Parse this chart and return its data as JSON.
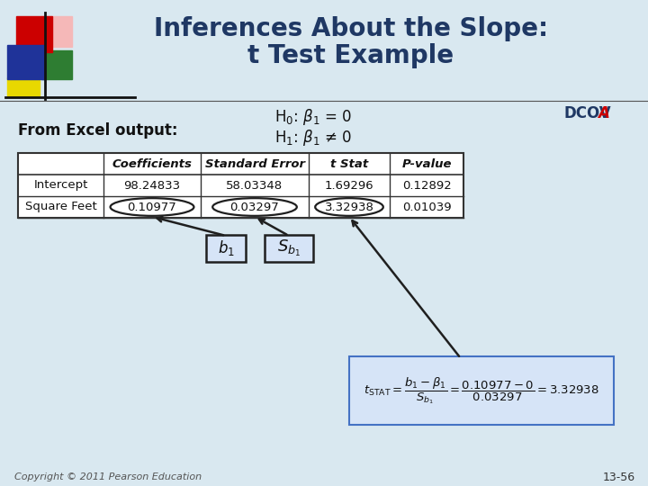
{
  "title_line1": "Inferences About the Slope:",
  "title_line2": "t Test Example",
  "title_color": "#1F3864",
  "bg_color": "#D9E8F0",
  "h0_text": "H$_0$: $\\beta_1$ = 0",
  "h1_text": "H$_1$: $\\beta_1$ ≠ 0",
  "from_excel_text": "From Excel output:",
  "dcov_text": "DCOV",
  "dcov_a_text": "A",
  "table_headers": [
    "",
    "Coefficients",
    "Standard Error",
    "t Stat",
    "P-value"
  ],
  "table_rows": [
    [
      "Intercept",
      "98.24833",
      "58.03348",
      "1.69296",
      "0.12892"
    ],
    [
      "Square Feet",
      "0.10977",
      "0.03297",
      "3.32938",
      "0.01039"
    ]
  ],
  "copyright_text": "Copyright © 2011 Pearson Education",
  "page_text": "13-56",
  "ellipse_color": "#1F1F1F",
  "arrow_color": "#1F1F1F",
  "box_fill": "#D6E4F7",
  "box_border": "#1F1F1F",
  "formula_box_fill": "#D6E4F7",
  "formula_box_border": "#4472C4"
}
